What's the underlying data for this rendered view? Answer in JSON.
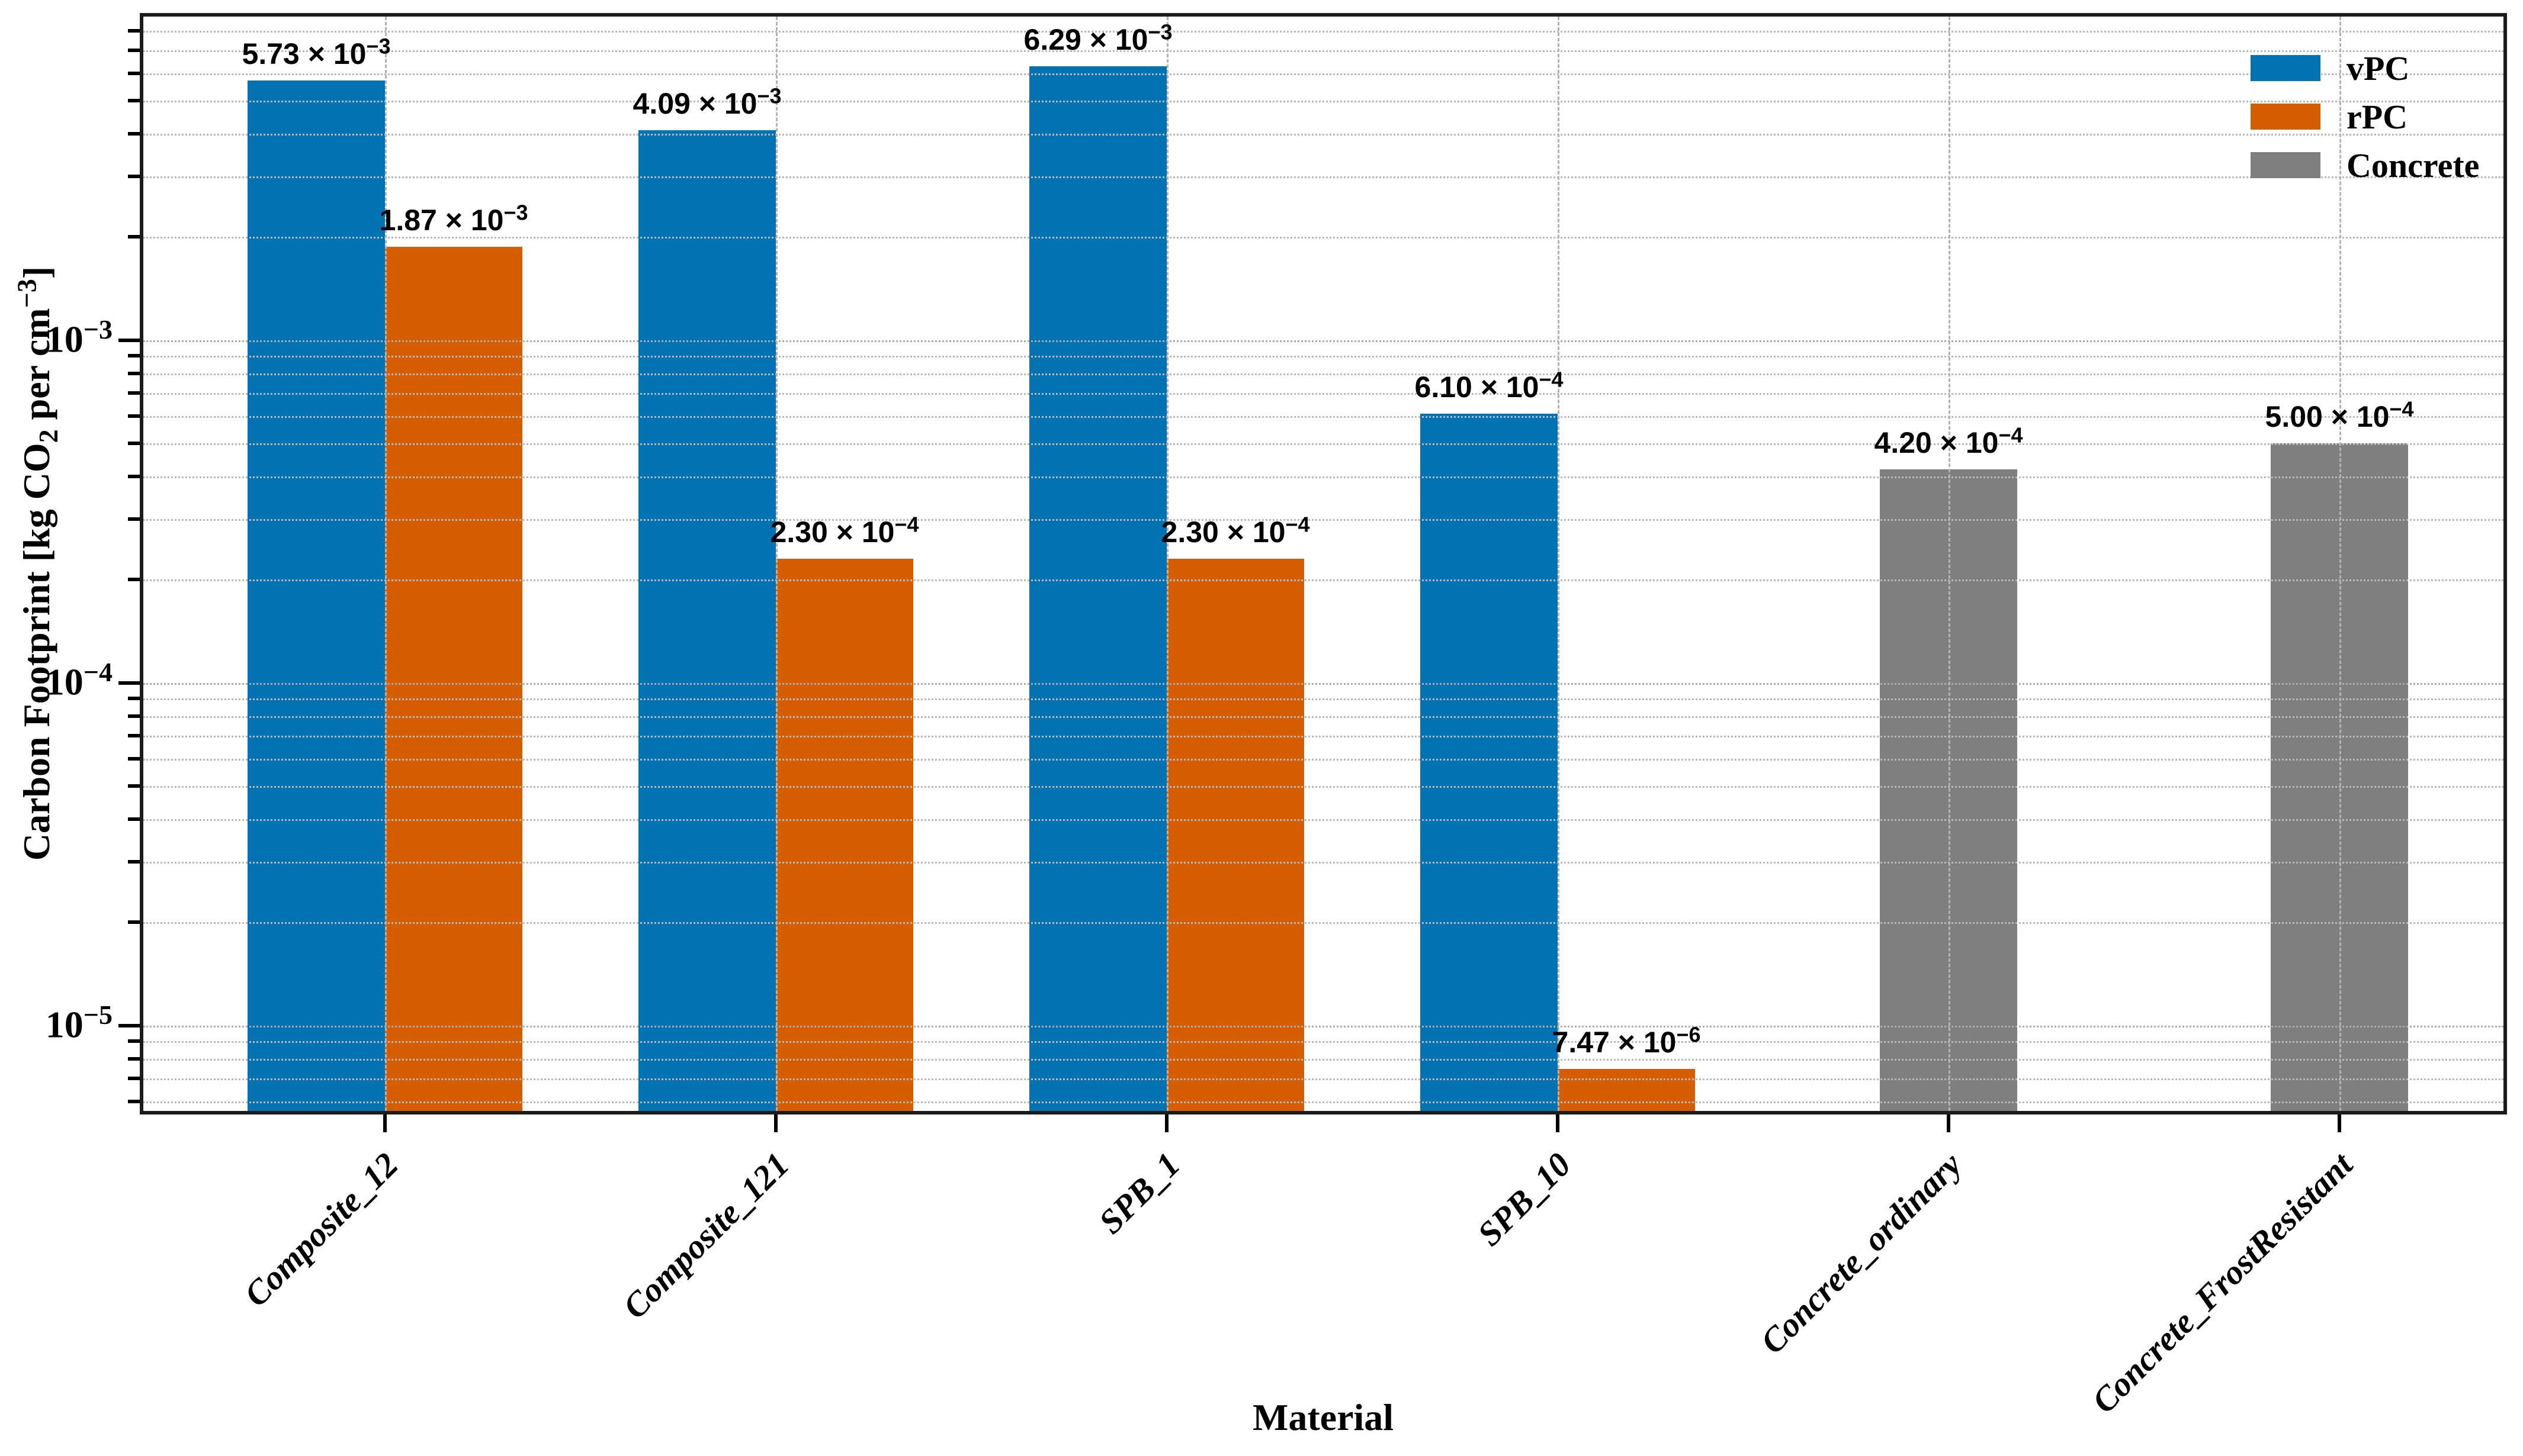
{
  "figure": {
    "background": "#ffffff"
  },
  "chart_data": {
    "type": "bar",
    "yscale": "log",
    "title": "",
    "xlabel": "Material",
    "ylabel": "Carbon Footprint [kg CO2 per cm^-3]",
    "ylabel_parts": {
      "pre": "Carbon Footprint [kg CO",
      "sub": "2",
      "mid": " per cm",
      "sup": "−3",
      "post": "]"
    },
    "ylim": [
      5.5e-06,
      0.009
    ],
    "grid": {
      "horizontal": "dotted",
      "vertical": "dashed",
      "axisbelow": false
    },
    "ytick_labels": [
      {
        "base": "10",
        "exp": "−3",
        "value": 0.001
      },
      {
        "base": "10",
        "exp": "−4",
        "value": 0.0001
      },
      {
        "base": "10",
        "exp": "−5",
        "value": 1e-05
      }
    ],
    "categories": [
      "Composite_12",
      "Composite_121",
      "SPB_1",
      "SPB_10",
      "Concrete_ordinary",
      "Concrete_FrostResistant"
    ],
    "series": [
      {
        "name": "vPC",
        "color": "#0173b2",
        "align": "left",
        "values": [
          0.00573,
          0.00409,
          0.00629,
          0.00061,
          null,
          null
        ],
        "labels": [
          {
            "base": "5.73 × 10",
            "exp": "−3"
          },
          {
            "base": "4.09 × 10",
            "exp": "−3"
          },
          {
            "base": "6.29 × 10",
            "exp": "−3"
          },
          {
            "base": "6.10 × 10",
            "exp": "−4"
          },
          null,
          null
        ]
      },
      {
        "name": "rPC",
        "color": "#d55e00",
        "align": "right",
        "values": [
          0.00187,
          0.00023,
          0.00023,
          7.47e-06,
          null,
          null
        ],
        "labels": [
          {
            "base": "1.87 × 10",
            "exp": "−3"
          },
          {
            "base": "2.30 × 10",
            "exp": "−4"
          },
          {
            "base": "2.30 × 10",
            "exp": "−4"
          },
          {
            "base": "7.47 × 10",
            "exp": "−6"
          },
          null,
          null
        ]
      },
      {
        "name": "Concrete",
        "color": "#7f7f7f",
        "align": "center",
        "values": [
          null,
          null,
          null,
          null,
          0.00042,
          0.0005
        ],
        "labels": [
          null,
          null,
          null,
          null,
          {
            "base": "4.20 × 10",
            "exp": "−4"
          },
          {
            "base": "5.00 × 10",
            "exp": "−4"
          }
        ]
      }
    ],
    "legend": {
      "position": "upper right",
      "entries": [
        "vPC",
        "rPC",
        "Concrete"
      ]
    }
  }
}
